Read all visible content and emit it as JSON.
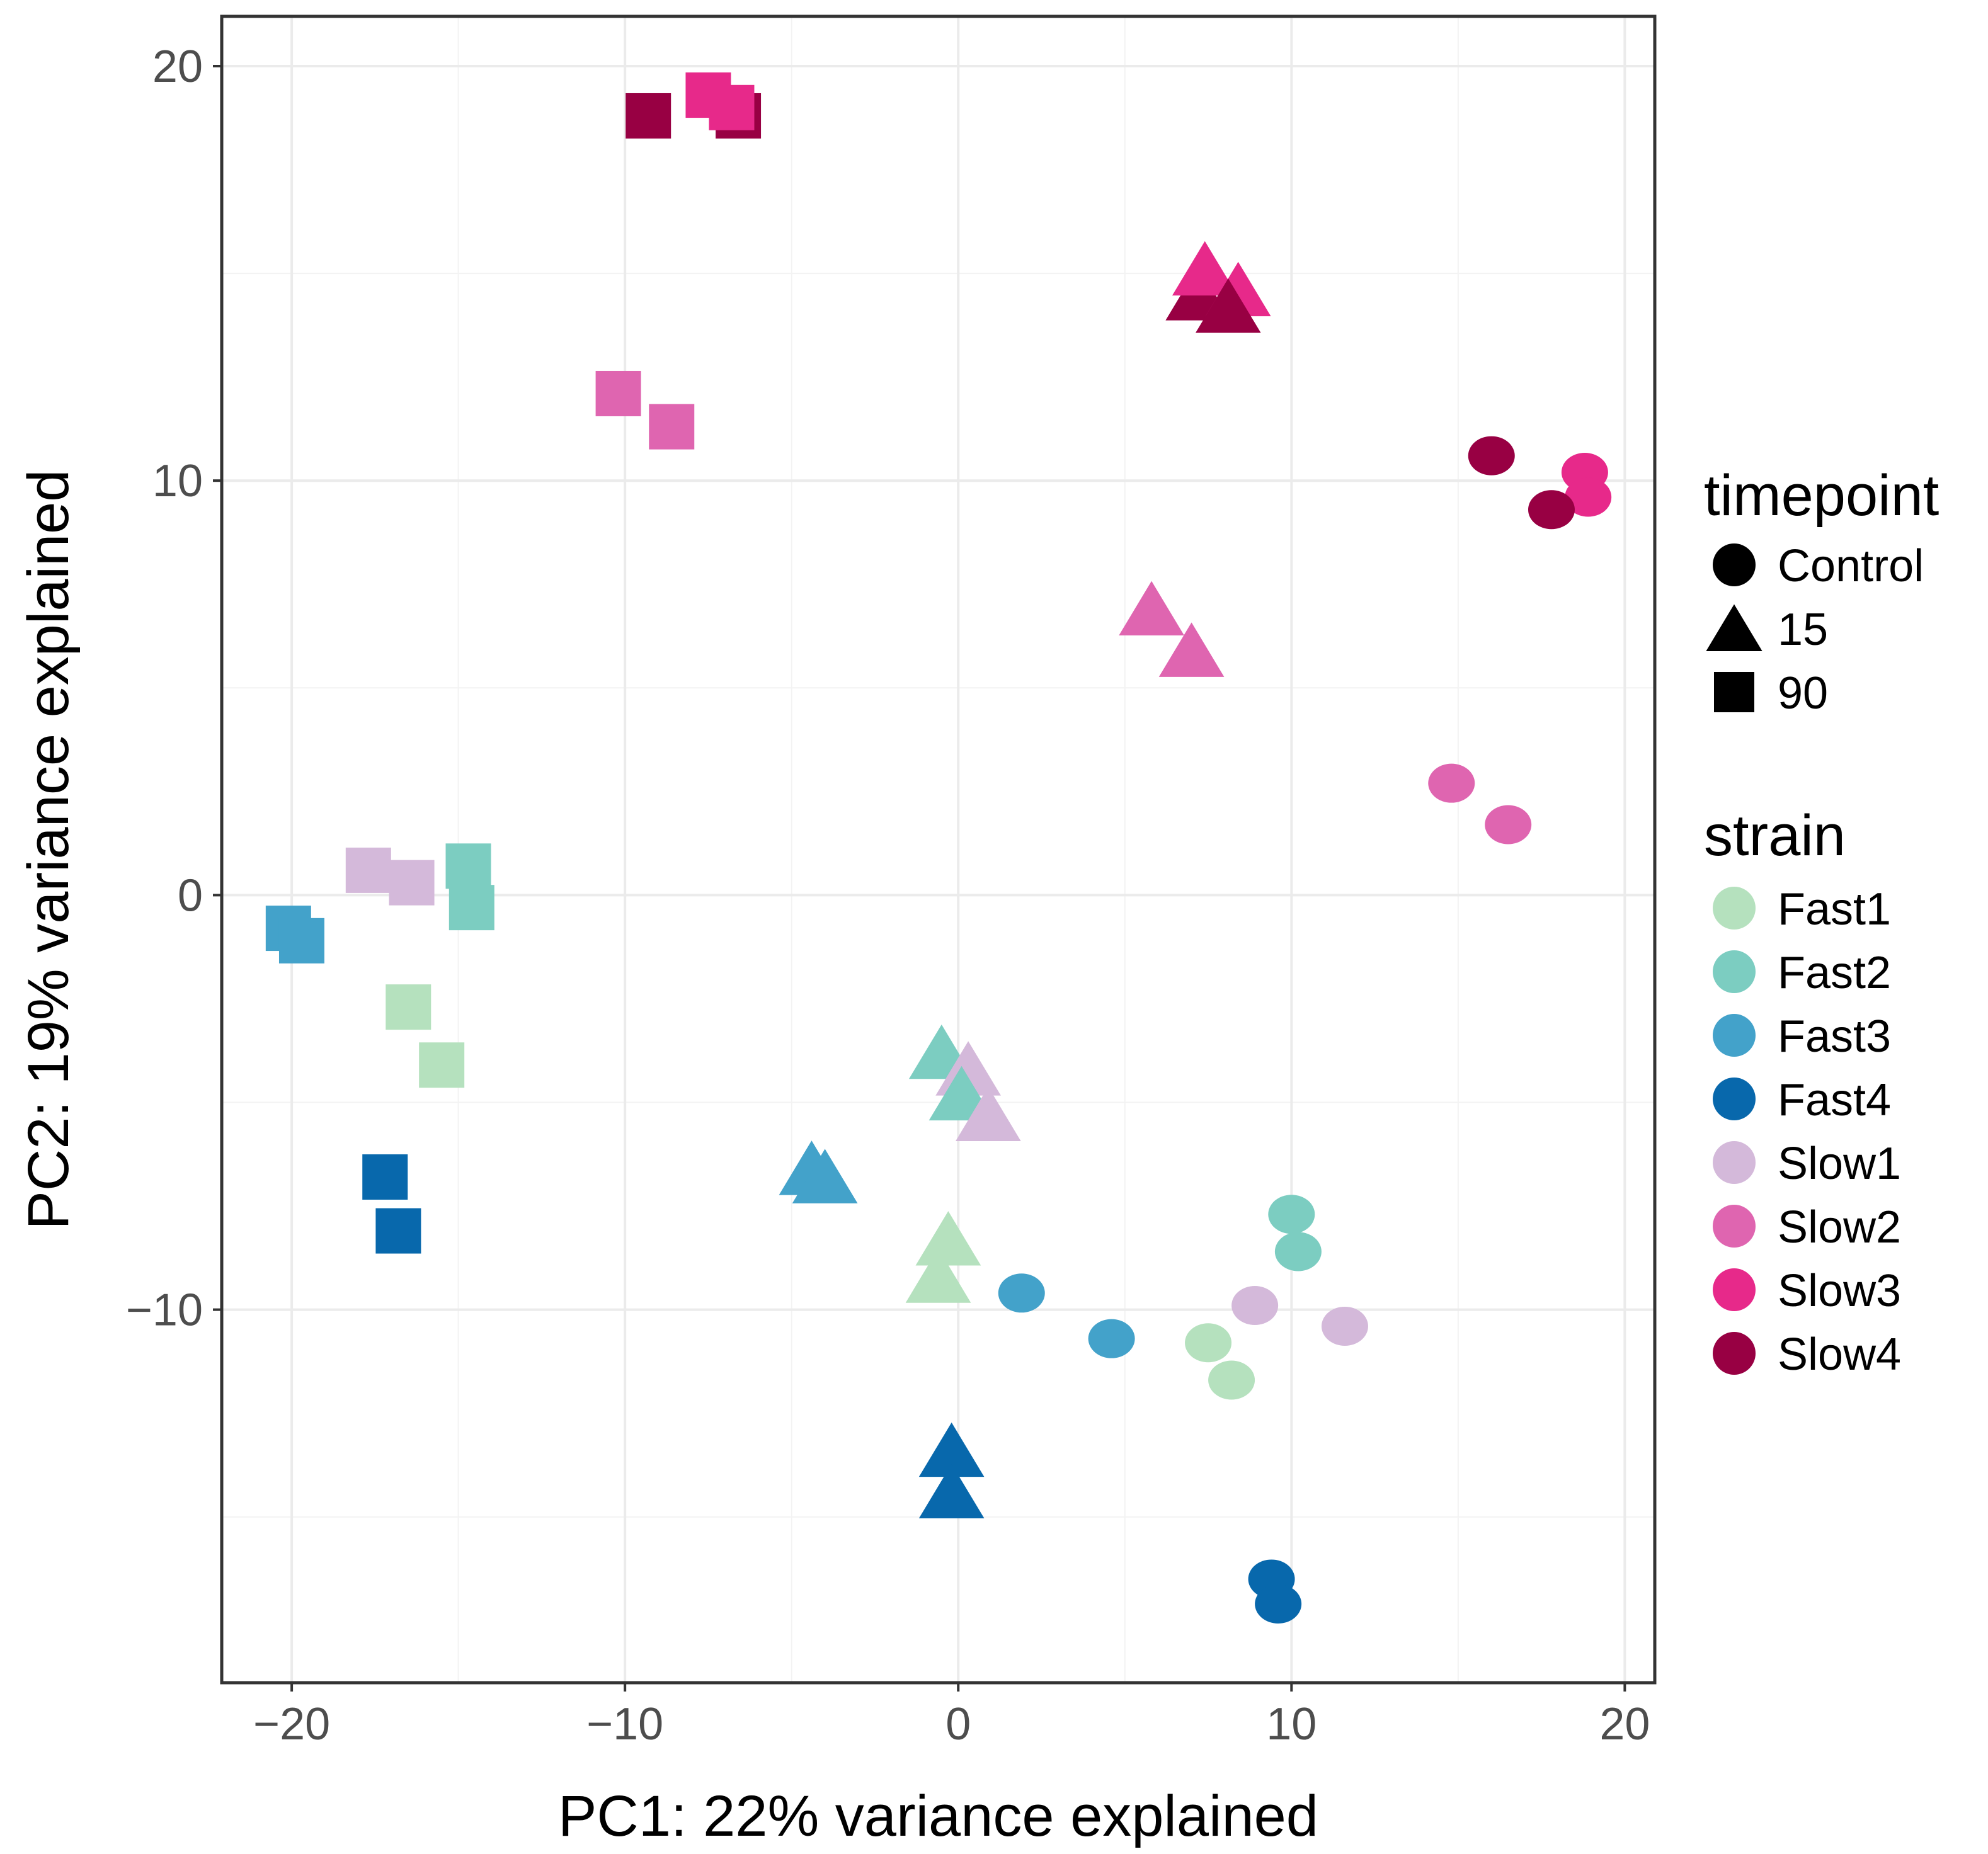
{
  "chart_data": {
    "type": "scatter",
    "title": "",
    "xlabel": "PC1: 22% variance explained",
    "ylabel": "PC2: 19% variance explained",
    "xlim": [
      -22.1,
      20.9
    ],
    "ylim": [
      -19.0,
      21.2
    ],
    "xticks": [
      -20,
      -10,
      0,
      10,
      20
    ],
    "yticks": [
      -10,
      0,
      10,
      20
    ],
    "xtick_labels": [
      "−20",
      "−10",
      "0",
      "10",
      "20"
    ],
    "ytick_labels": [
      "−10",
      "0",
      "10",
      "20"
    ],
    "grid": true,
    "legends": {
      "shape": {
        "title": "timepoint",
        "items": [
          {
            "label": "Control",
            "shape": "circle"
          },
          {
            "label": "15",
            "shape": "triangle"
          },
          {
            "label": "90",
            "shape": "square"
          }
        ]
      },
      "color": {
        "title": "strain",
        "items": [
          {
            "label": "Fast1",
            "color": "#b5e1be"
          },
          {
            "label": "Fast2",
            "color": "#7ccdc1"
          },
          {
            "label": "Fast3",
            "color": "#43a2ca"
          },
          {
            "label": "Fast4",
            "color": "#0868ac"
          },
          {
            "label": "Slow1",
            "color": "#d4b9da"
          },
          {
            "label": "Slow2",
            "color": "#df65b0"
          },
          {
            "label": "Slow3",
            "color": "#e7298a"
          },
          {
            "label": "Slow4",
            "color": "#980043"
          }
        ]
      }
    },
    "points": [
      {
        "strain": "Slow4",
        "timepoint": "90",
        "x": -9.3,
        "y": 18.8
      },
      {
        "strain": "Slow3",
        "timepoint": "90",
        "x": -7.5,
        "y": 19.3
      },
      {
        "strain": "Slow4",
        "timepoint": "90",
        "x": -6.6,
        "y": 18.8
      },
      {
        "strain": "Slow3",
        "timepoint": "90",
        "x": -6.8,
        "y": 19.0
      },
      {
        "strain": "Slow2",
        "timepoint": "90",
        "x": -10.2,
        "y": 12.1
      },
      {
        "strain": "Slow2",
        "timepoint": "90",
        "x": -8.6,
        "y": 11.3
      },
      {
        "strain": "Slow1",
        "timepoint": "90",
        "x": -17.7,
        "y": 0.6
      },
      {
        "strain": "Slow1",
        "timepoint": "90",
        "x": -16.4,
        "y": 0.3
      },
      {
        "strain": "Fast2",
        "timepoint": "90",
        "x": -14.7,
        "y": 0.7
      },
      {
        "strain": "Fast2",
        "timepoint": "90",
        "x": -14.6,
        "y": -0.3
      },
      {
        "strain": "Fast3",
        "timepoint": "90",
        "x": -20.1,
        "y": -0.8
      },
      {
        "strain": "Fast3",
        "timepoint": "90",
        "x": -19.7,
        "y": -1.1
      },
      {
        "strain": "Fast1",
        "timepoint": "90",
        "x": -16.5,
        "y": -2.7
      },
      {
        "strain": "Fast1",
        "timepoint": "90",
        "x": -15.5,
        "y": -4.1
      },
      {
        "strain": "Fast4",
        "timepoint": "90",
        "x": -17.2,
        "y": -6.8
      },
      {
        "strain": "Fast4",
        "timepoint": "90",
        "x": -16.8,
        "y": -8.1
      },
      {
        "strain": "Slow4",
        "timepoint": "15",
        "x": 7.2,
        "y": 14.5
      },
      {
        "strain": "Slow3",
        "timepoint": "15",
        "x": 7.4,
        "y": 15.1
      },
      {
        "strain": "Slow3",
        "timepoint": "15",
        "x": 8.4,
        "y": 14.6
      },
      {
        "strain": "Slow4",
        "timepoint": "15",
        "x": 8.1,
        "y": 14.2
      },
      {
        "strain": "Slow2",
        "timepoint": "15",
        "x": 5.8,
        "y": 6.9
      },
      {
        "strain": "Slow2",
        "timepoint": "15",
        "x": 7.0,
        "y": 5.9
      },
      {
        "strain": "Fast2",
        "timepoint": "15",
        "x": -0.5,
        "y": -3.8
      },
      {
        "strain": "Slow1",
        "timepoint": "15",
        "x": 0.3,
        "y": -4.2
      },
      {
        "strain": "Fast2",
        "timepoint": "15",
        "x": 0.1,
        "y": -4.8
      },
      {
        "strain": "Slow1",
        "timepoint": "15",
        "x": 0.9,
        "y": -5.3
      },
      {
        "strain": "Fast3",
        "timepoint": "15",
        "x": -4.4,
        "y": -6.6
      },
      {
        "strain": "Fast3",
        "timepoint": "15",
        "x": -4.0,
        "y": -6.8
      },
      {
        "strain": "Fast1",
        "timepoint": "15",
        "x": -0.3,
        "y": -8.3
      },
      {
        "strain": "Fast1",
        "timepoint": "15",
        "x": -0.6,
        "y": -9.2
      },
      {
        "strain": "Fast4",
        "timepoint": "15",
        "x": -0.2,
        "y": -13.4
      },
      {
        "strain": "Fast4",
        "timepoint": "15",
        "x": -0.2,
        "y": -14.4
      },
      {
        "strain": "Slow4",
        "timepoint": "Control",
        "x": 16.0,
        "y": 10.6
      },
      {
        "strain": "Slow3",
        "timepoint": "Control",
        "x": 18.8,
        "y": 10.2
      },
      {
        "strain": "Slow3",
        "timepoint": "Control",
        "x": 18.9,
        "y": 9.6
      },
      {
        "strain": "Slow4",
        "timepoint": "Control",
        "x": 17.8,
        "y": 9.3
      },
      {
        "strain": "Slow2",
        "timepoint": "Control",
        "x": 14.8,
        "y": 2.7
      },
      {
        "strain": "Slow2",
        "timepoint": "Control",
        "x": 16.5,
        "y": 1.7
      },
      {
        "strain": "Fast2",
        "timepoint": "Control",
        "x": 10.0,
        "y": -7.7
      },
      {
        "strain": "Fast2",
        "timepoint": "Control",
        "x": 10.2,
        "y": -8.6
      },
      {
        "strain": "Slow1",
        "timepoint": "Control",
        "x": 8.9,
        "y": -9.9
      },
      {
        "strain": "Slow1",
        "timepoint": "Control",
        "x": 11.6,
        "y": -10.4
      },
      {
        "strain": "Fast3",
        "timepoint": "Control",
        "x": 1.9,
        "y": -9.6
      },
      {
        "strain": "Fast3",
        "timepoint": "Control",
        "x": 4.6,
        "y": -10.7
      },
      {
        "strain": "Fast1",
        "timepoint": "Control",
        "x": 7.5,
        "y": -10.8
      },
      {
        "strain": "Fast1",
        "timepoint": "Control",
        "x": 8.2,
        "y": -11.7
      },
      {
        "strain": "Fast4",
        "timepoint": "Control",
        "x": 9.4,
        "y": -16.5
      },
      {
        "strain": "Fast4",
        "timepoint": "Control",
        "x": 9.6,
        "y": -17.1
      }
    ]
  }
}
